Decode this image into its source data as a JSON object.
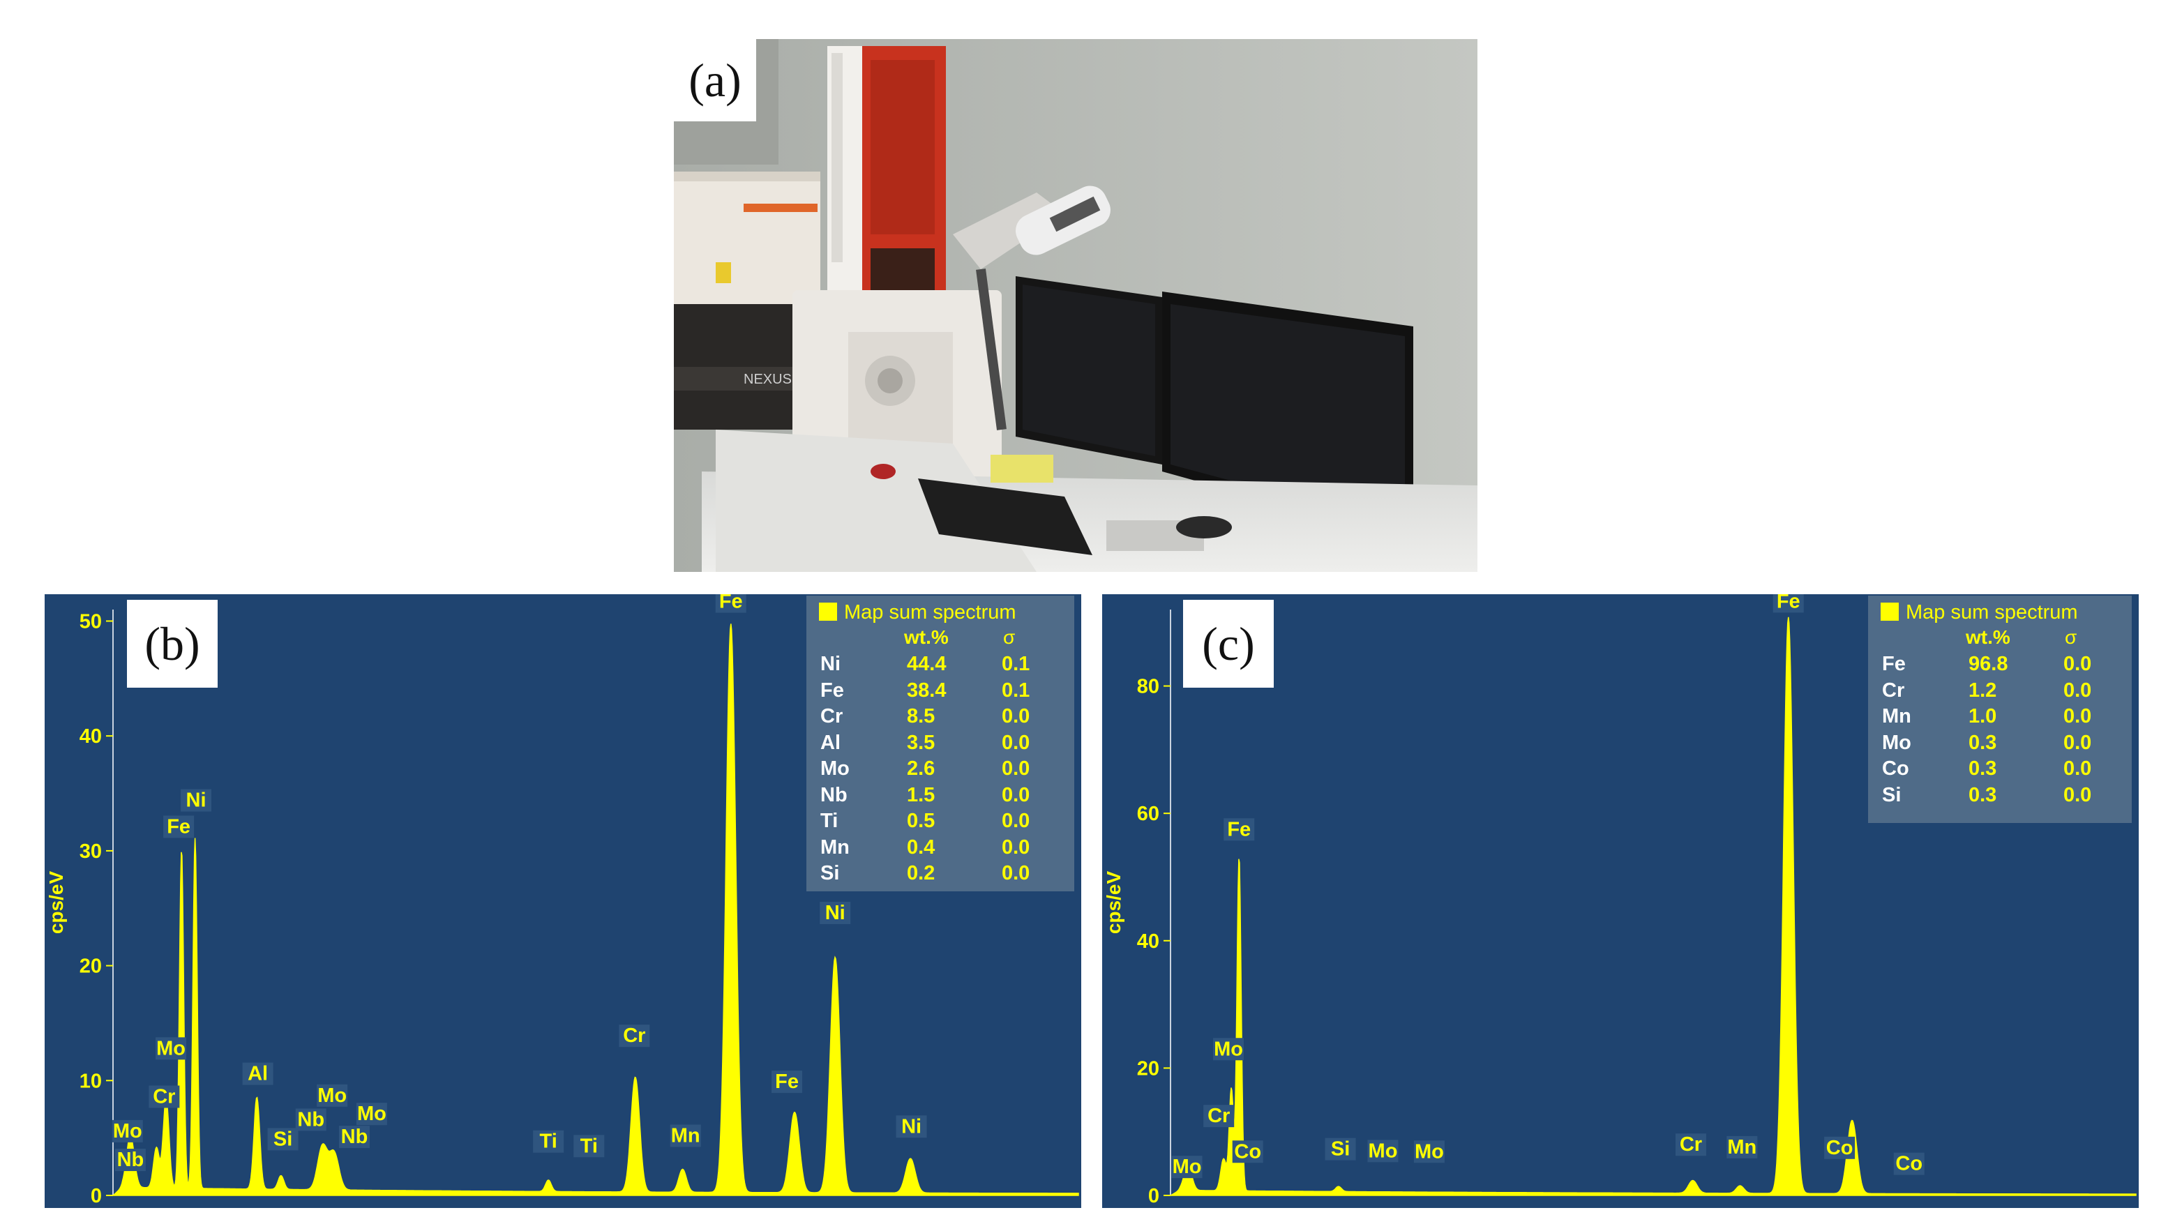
{
  "figure": {
    "panel_a": {
      "letter": "(a)",
      "nameplate": "NEXUS"
    },
    "colors": {
      "plot_bg": "#1f4470",
      "spectrum": "#ffff00",
      "label_bg": "#2f557f"
    },
    "panels": [
      {
        "id": "b",
        "letter": "(b)",
        "legend_title": "Map sum spectrum",
        "col_wt": "wt.%",
        "col_sigma": "σ",
        "rows": [
          {
            "el": "Ni",
            "wt": "44.4",
            "sigma": "0.1"
          },
          {
            "el": "Fe",
            "wt": "38.4",
            "sigma": "0.1"
          },
          {
            "el": "Cr",
            "wt": "8.5",
            "sigma": "0.0"
          },
          {
            "el": "Al",
            "wt": "3.5",
            "sigma": "0.0"
          },
          {
            "el": "Mo",
            "wt": "2.6",
            "sigma": "0.0"
          },
          {
            "el": "Nb",
            "wt": "1.5",
            "sigma": "0.0"
          },
          {
            "el": "Ti",
            "wt": "0.5",
            "sigma": "0.0"
          },
          {
            "el": "Mn",
            "wt": "0.4",
            "sigma": "0.0"
          },
          {
            "el": "Si",
            "wt": "0.2",
            "sigma": "0.0"
          }
        ]
      },
      {
        "id": "c",
        "letter": "(c)",
        "legend_title": "Map sum spectrum",
        "col_wt": "wt.%",
        "col_sigma": "σ",
        "rows": [
          {
            "el": "Fe",
            "wt": "96.8",
            "sigma": "0.0"
          },
          {
            "el": "Cr",
            "wt": "1.2",
            "sigma": "0.0"
          },
          {
            "el": "Mn",
            "wt": "1.0",
            "sigma": "0.0"
          },
          {
            "el": "Mo",
            "wt": "0.3",
            "sigma": "0.0"
          },
          {
            "el": "Co",
            "wt": "0.3",
            "sigma": "0.0"
          },
          {
            "el": "Si",
            "wt": "0.3",
            "sigma": "0.0"
          }
        ]
      }
    ]
  },
  "chart_data": [
    {
      "type": "line",
      "panel": "b",
      "ylabel": "cps/eV",
      "xlabel": "",
      "yticks": [
        0,
        10,
        20,
        30,
        40,
        50
      ],
      "ylim": [
        0,
        51
      ],
      "xlim": [
        0,
        10
      ],
      "grid": false,
      "legend": "top-right",
      "baseline": 0.6,
      "baseline_decay": 0.22,
      "peaks": [
        {
          "x": 0.18,
          "h": 4.5,
          "w": 0.04
        },
        {
          "x": 0.45,
          "h": 3.5,
          "w": 0.03
        },
        {
          "x": 0.55,
          "h": 7.8,
          "w": 0.03
        },
        {
          "x": 0.71,
          "h": 29.5,
          "w": 0.022
        },
        {
          "x": 0.85,
          "h": 30.5,
          "w": 0.022
        },
        {
          "x": 1.49,
          "h": 8.0,
          "w": 0.03
        },
        {
          "x": 1.74,
          "h": 1.2,
          "w": 0.03
        },
        {
          "x": 2.17,
          "h": 3.8,
          "w": 0.05
        },
        {
          "x": 2.29,
          "h": 3.2,
          "w": 0.05
        },
        {
          "x": 4.51,
          "h": 1.0,
          "w": 0.03
        },
        {
          "x": 5.41,
          "h": 10.0,
          "w": 0.045
        },
        {
          "x": 5.9,
          "h": 2.0,
          "w": 0.04
        },
        {
          "x": 6.4,
          "h": 49.5,
          "w": 0.05
        },
        {
          "x": 7.06,
          "h": 7.0,
          "w": 0.05
        },
        {
          "x": 7.48,
          "h": 20.5,
          "w": 0.05
        },
        {
          "x": 8.26,
          "h": 3.0,
          "w": 0.05
        }
      ],
      "peak_labels": [
        {
          "text": "Mo",
          "x": 0.15,
          "y": 4.5
        },
        {
          "text": "Nb",
          "x": 0.18,
          "y": 2.0
        },
        {
          "text": "Cr",
          "x": 0.53,
          "y": 7.5
        },
        {
          "text": "Mo",
          "x": 0.6,
          "y": 11.7
        },
        {
          "text": "Fe",
          "x": 0.68,
          "y": 31.0
        },
        {
          "text": "Ni",
          "x": 0.86,
          "y": 33.3
        },
        {
          "text": "Al",
          "x": 1.5,
          "y": 9.5
        },
        {
          "text": "Si",
          "x": 1.76,
          "y": 3.8
        },
        {
          "text": "Nb",
          "x": 2.05,
          "y": 5.5
        },
        {
          "text": "Mo",
          "x": 2.27,
          "y": 7.6
        },
        {
          "text": "Nb",
          "x": 2.5,
          "y": 4.0
        },
        {
          "text": "Mo",
          "x": 2.68,
          "y": 6.0
        },
        {
          "text": "Ti",
          "x": 4.51,
          "y": 3.6
        },
        {
          "text": "Ti",
          "x": 4.93,
          "y": 3.2
        },
        {
          "text": "Cr",
          "x": 5.4,
          "y": 12.8
        },
        {
          "text": "Mn",
          "x": 5.93,
          "y": 4.1
        },
        {
          "text": "Fe",
          "x": 6.4,
          "y": 50.6
        },
        {
          "text": "Fe",
          "x": 6.98,
          "y": 8.8
        },
        {
          "text": "Ni",
          "x": 7.48,
          "y": 23.5
        },
        {
          "text": "Ni",
          "x": 8.27,
          "y": 4.9
        }
      ]
    },
    {
      "type": "line",
      "panel": "c",
      "ylabel": "cps/eV",
      "xlabel": "",
      "yticks": [
        0,
        20,
        40,
        60,
        80
      ],
      "ylim": [
        0,
        92
      ],
      "xlim": [
        0,
        10
      ],
      "grid": false,
      "legend": "top-right",
      "baseline": 0.7,
      "baseline_decay": 0.2,
      "peaks": [
        {
          "x": 0.18,
          "h": 4.0,
          "w": 0.04
        },
        {
          "x": 0.55,
          "h": 5.0,
          "w": 0.03
        },
        {
          "x": 0.63,
          "h": 16.0,
          "w": 0.022
        },
        {
          "x": 0.71,
          "h": 52.5,
          "w": 0.022
        },
        {
          "x": 1.74,
          "h": 0.8,
          "w": 0.03
        },
        {
          "x": 5.41,
          "h": 2.0,
          "w": 0.045
        },
        {
          "x": 5.9,
          "h": 1.2,
          "w": 0.04
        },
        {
          "x": 6.4,
          "h": 90.5,
          "w": 0.05
        },
        {
          "x": 7.06,
          "h": 11.5,
          "w": 0.05
        }
      ],
      "peak_labels": [
        {
          "text": "Mo",
          "x": 0.17,
          "y": 2.5
        },
        {
          "text": "Cr",
          "x": 0.5,
          "y": 10.5
        },
        {
          "text": "Mo",
          "x": 0.6,
          "y": 21.0
        },
        {
          "text": "Co",
          "x": 0.8,
          "y": 4.9
        },
        {
          "text": "Fe",
          "x": 0.71,
          "y": 55.5
        },
        {
          "text": "Si",
          "x": 1.76,
          "y": 5.3
        },
        {
          "text": "Mo",
          "x": 2.2,
          "y": 5.0
        },
        {
          "text": "Mo",
          "x": 2.68,
          "y": 4.9
        },
        {
          "text": "Cr",
          "x": 5.39,
          "y": 6.0
        },
        {
          "text": "Mn",
          "x": 5.92,
          "y": 5.6
        },
        {
          "text": "Fe",
          "x": 6.4,
          "y": 91.3
        },
        {
          "text": "Co",
          "x": 6.93,
          "y": 5.5
        },
        {
          "text": "Co",
          "x": 7.65,
          "y": 3.0
        }
      ]
    }
  ]
}
